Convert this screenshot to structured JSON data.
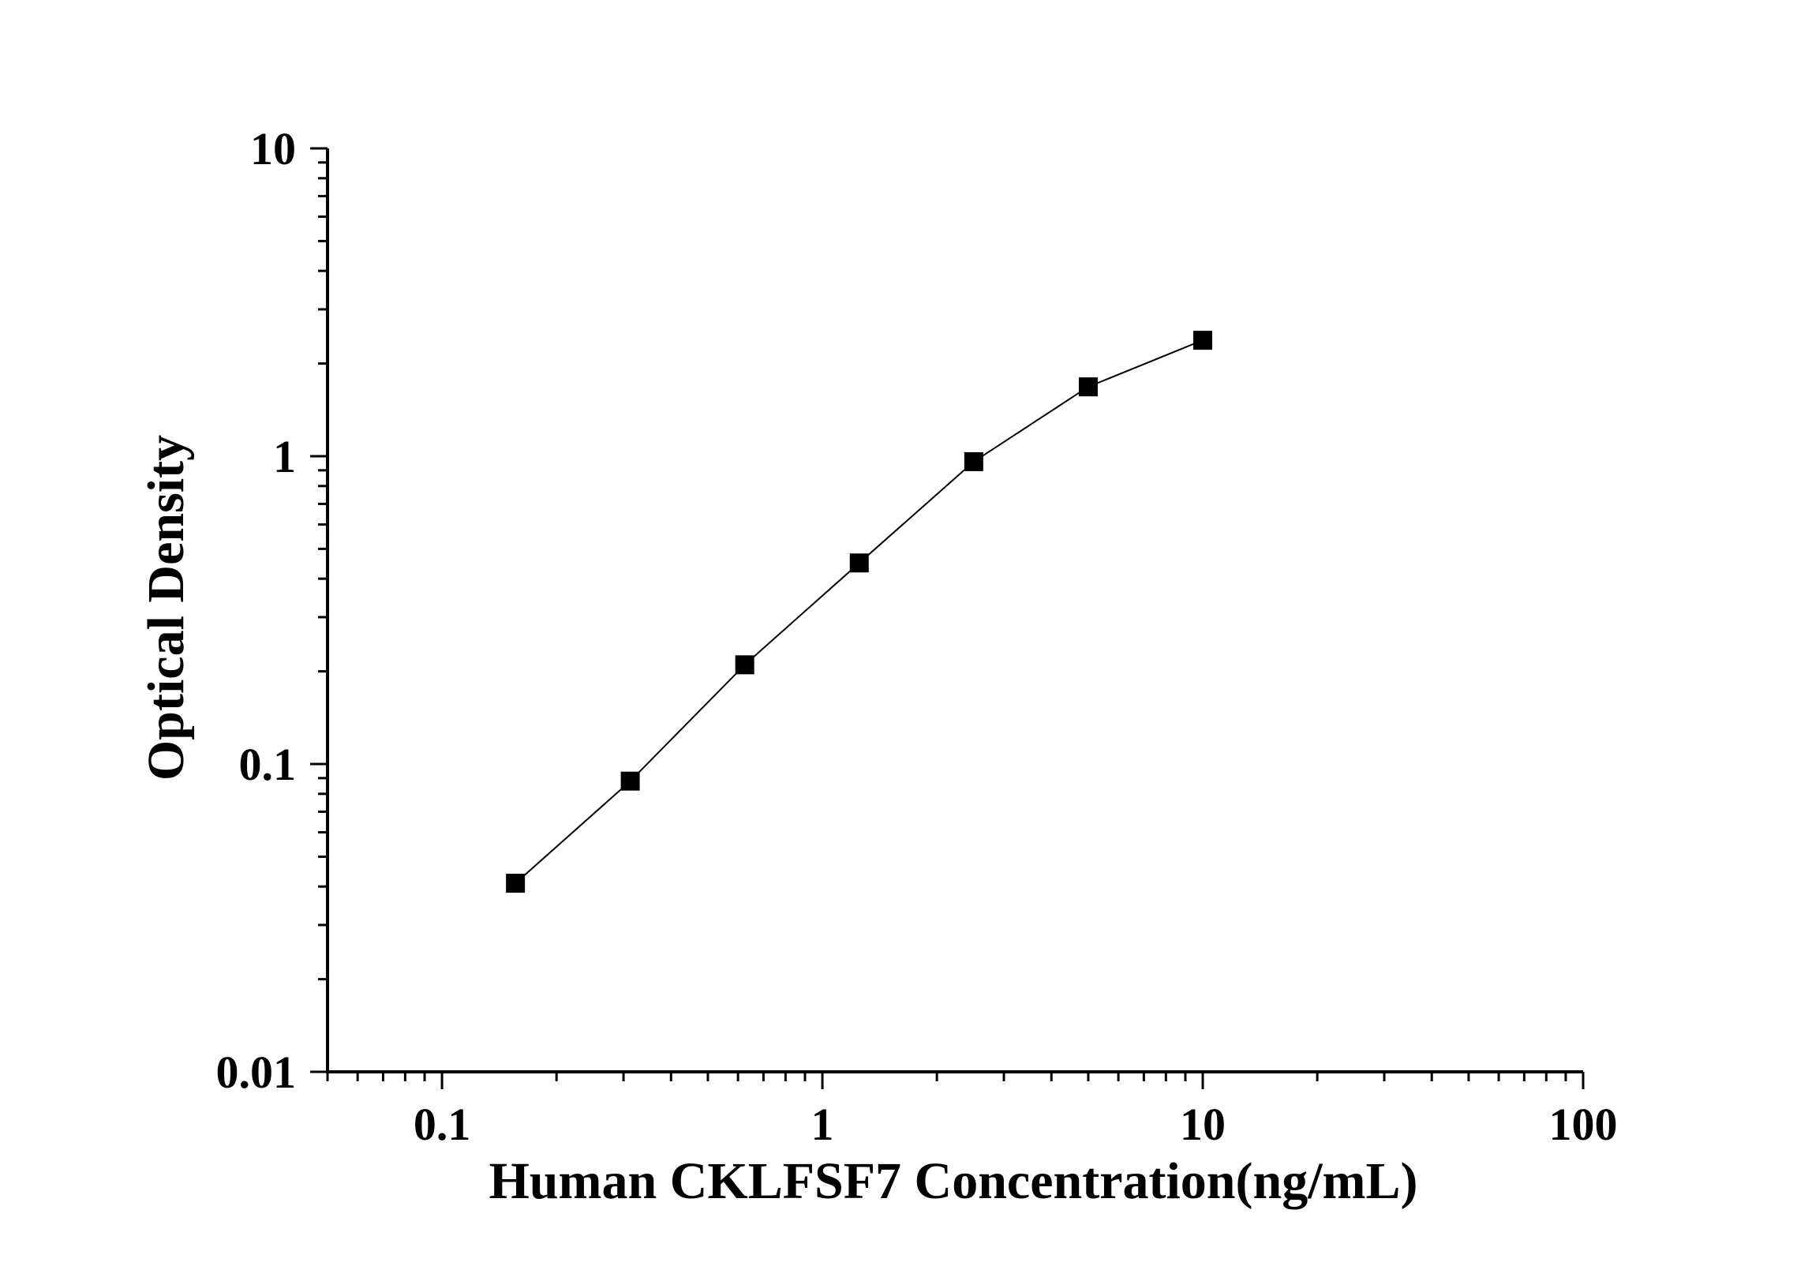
{
  "chart_data": {
    "type": "line",
    "xlabel": "Human CKLFSF7 Concentration(ng/mL)",
    "ylabel": "Optical Density",
    "x_scale": "log",
    "y_scale": "log",
    "xlim": [
      0.05,
      100
    ],
    "ylim": [
      0.01,
      10
    ],
    "x_ticks": [
      "0.1",
      "1",
      "10",
      "100"
    ],
    "y_ticks": [
      "0.01",
      "0.1",
      "1",
      "10"
    ],
    "grid": false,
    "marker": "square",
    "colors": {
      "line": "#000000",
      "marker": "#000000",
      "axis": "#000000"
    },
    "series": [
      {
        "x": [
          0.156,
          0.3125,
          0.625,
          1.25,
          2.5,
          5,
          10
        ],
        "y": [
          0.041,
          0.088,
          0.21,
          0.45,
          0.96,
          1.68,
          2.38
        ]
      }
    ]
  }
}
